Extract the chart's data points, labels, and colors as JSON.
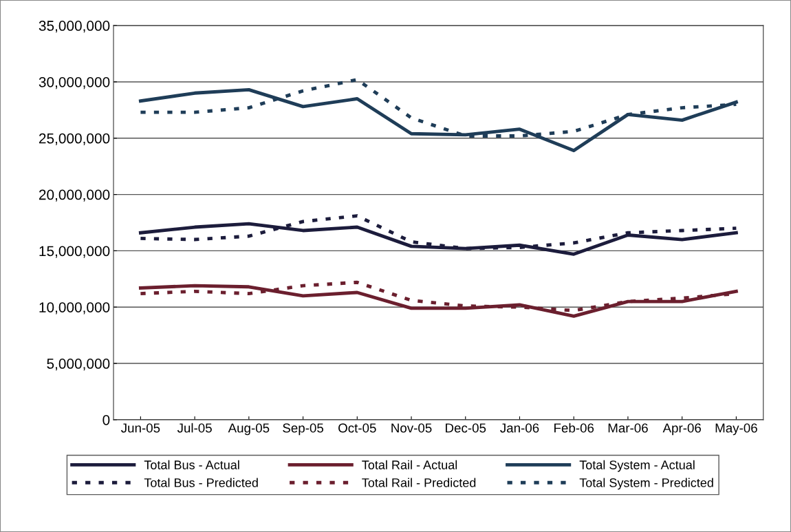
{
  "chart_data": {
    "type": "line",
    "categories": [
      "Jun-05",
      "Jul-05",
      "Aug-05",
      "Sep-05",
      "Oct-05",
      "Nov-05",
      "Dec-05",
      "Jan-06",
      "Feb-06",
      "Mar-06",
      "Apr-06",
      "May-06"
    ],
    "series": [
      {
        "name": "Total Bus - Actual",
        "color": "#1c1c3c",
        "line_style": "solid",
        "values": [
          16600000,
          17100000,
          17400000,
          16800000,
          17100000,
          15400000,
          15200000,
          15500000,
          14700000,
          16400000,
          16000000,
          16600000
        ]
      },
      {
        "name": "Total Bus - Predicted",
        "color": "#1c1c3c",
        "line_style": "dashed",
        "values": [
          16100000,
          16000000,
          16300000,
          17600000,
          18100000,
          15800000,
          15200000,
          15300000,
          15700000,
          16600000,
          16800000,
          17000000
        ]
      },
      {
        "name": "Total Rail - Actual",
        "color": "#6b1f2e",
        "line_style": "solid",
        "values": [
          11700000,
          11900000,
          11800000,
          11000000,
          11300000,
          9900000,
          9900000,
          10200000,
          9200000,
          10500000,
          10500000,
          11400000
        ]
      },
      {
        "name": "Total Rail - Predicted",
        "color": "#6b1f2e",
        "line_style": "dashed",
        "values": [
          11200000,
          11400000,
          11200000,
          11900000,
          12200000,
          10600000,
          10100000,
          10000000,
          9700000,
          10500000,
          10800000,
          11200000
        ]
      },
      {
        "name": "Total System - Actual",
        "color": "#1f3d58",
        "line_style": "solid",
        "values": [
          28300000,
          29000000,
          29300000,
          27800000,
          28500000,
          25400000,
          25300000,
          25800000,
          23900000,
          27100000,
          26600000,
          28200000
        ]
      },
      {
        "name": "Total System - Predicted",
        "color": "#1f3d58",
        "line_style": "dashed",
        "values": [
          27300000,
          27300000,
          27700000,
          29200000,
          30200000,
          26800000,
          25200000,
          25200000,
          25600000,
          27100000,
          27700000,
          28000000
        ]
      }
    ],
    "ylim": [
      0,
      35000000
    ],
    "yticks": [
      {
        "value": 0,
        "label": "0"
      },
      {
        "value": 5000000,
        "label": "5,000,000"
      },
      {
        "value": 10000000,
        "label": "10,000,000"
      },
      {
        "value": 15000000,
        "label": "15,000,000"
      },
      {
        "value": 20000000,
        "label": "20,000,000"
      },
      {
        "value": 25000000,
        "label": "25,000,000"
      },
      {
        "value": 30000000,
        "label": "30,000,000"
      },
      {
        "value": 35000000,
        "label": "35,000,000"
      }
    ],
    "grid": "y",
    "legend": "bottom",
    "marker": "none"
  }
}
